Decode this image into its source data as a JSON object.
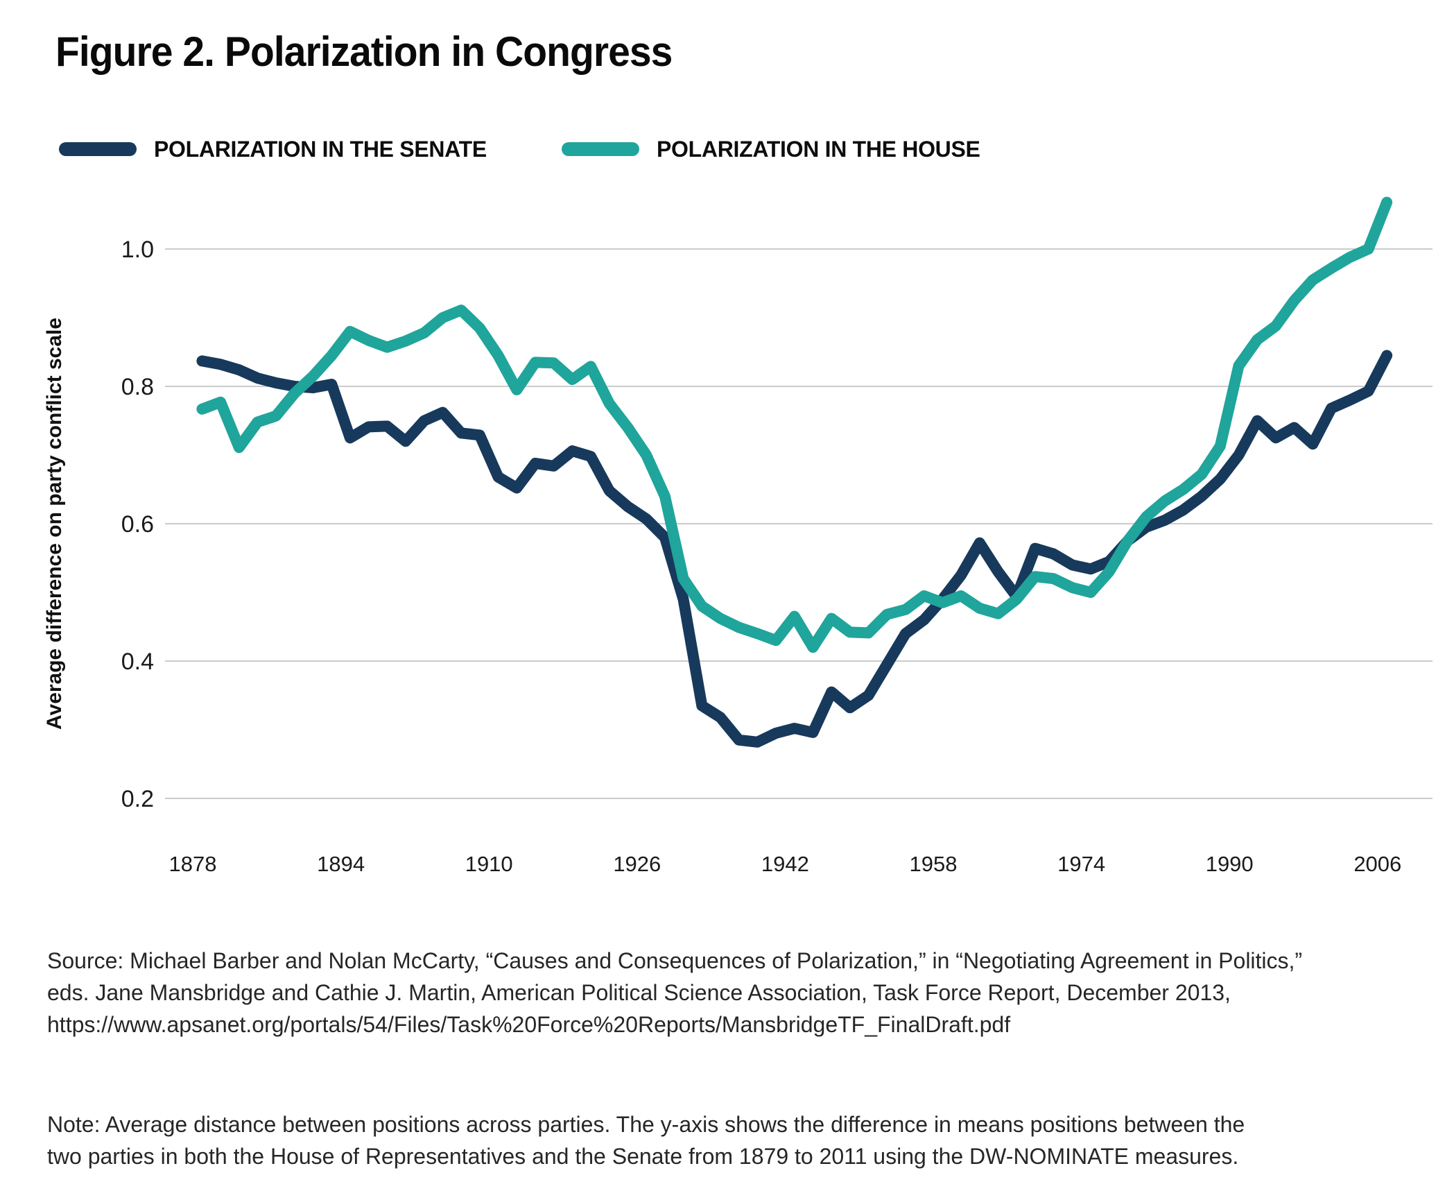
{
  "figure": {
    "title": "Figure 2. Polarization in Congress"
  },
  "legend": {
    "items": [
      {
        "label": "POLARIZATION IN THE SENATE",
        "color": "#17395C"
      },
      {
        "label": "POLARIZATION IN THE HOUSE",
        "color": "#1FA59B"
      }
    ]
  },
  "chart_data": {
    "type": "line",
    "title": "Figure 2. Polarization in Congress",
    "xlabel": "",
    "ylabel": "Average difference on party conflict scale",
    "x_ticks": [
      1878,
      1894,
      1910,
      1926,
      1942,
      1958,
      1974,
      1990,
      2006
    ],
    "y_ticks": [
      1.0,
      0.8,
      0.6,
      0.4,
      0.2
    ],
    "ylim": [
      0.2,
      1.07
    ],
    "grid": "horizontal",
    "legend_position": "top",
    "x": [
      1879,
      1881,
      1883,
      1885,
      1887,
      1889,
      1891,
      1893,
      1895,
      1897,
      1899,
      1901,
      1903,
      1905,
      1907,
      1909,
      1911,
      1913,
      1915,
      1917,
      1919,
      1921,
      1923,
      1925,
      1927,
      1929,
      1931,
      1933,
      1935,
      1937,
      1939,
      1941,
      1943,
      1945,
      1947,
      1949,
      1951,
      1953,
      1955,
      1957,
      1959,
      1961,
      1963,
      1965,
      1967,
      1969,
      1971,
      1973,
      1975,
      1977,
      1979,
      1981,
      1983,
      1985,
      1987,
      1989,
      1991,
      1993,
      1995,
      1997,
      1999,
      2001,
      2003,
      2005,
      2007
    ],
    "series": [
      {
        "name": "Polarization in the Senate",
        "color": "#17395C",
        "values": [
          0.837,
          0.832,
          0.824,
          0.812,
          0.805,
          0.8,
          0.798,
          0.803,
          0.725,
          0.741,
          0.742,
          0.72,
          0.75,
          0.762,
          0.732,
          0.729,
          0.668,
          0.652,
          0.688,
          0.684,
          0.706,
          0.698,
          0.648,
          0.625,
          0.607,
          0.58,
          0.49,
          0.335,
          0.318,
          0.285,
          0.282,
          0.295,
          0.302,
          0.296,
          0.355,
          0.332,
          0.35,
          0.395,
          0.44,
          0.46,
          0.49,
          0.525,
          0.572,
          0.53,
          0.494,
          0.564,
          0.556,
          0.54,
          0.534,
          0.545,
          0.575,
          0.595,
          0.605,
          0.62,
          0.64,
          0.665,
          0.7,
          0.75,
          0.725,
          0.74,
          0.716,
          0.768,
          0.78,
          0.793,
          0.845
        ]
      },
      {
        "name": "Polarization in the House",
        "color": "#1FA59B",
        "values": [
          0.767,
          0.777,
          0.711,
          0.748,
          0.757,
          0.79,
          0.815,
          0.845,
          0.88,
          0.867,
          0.857,
          0.866,
          0.878,
          0.9,
          0.911,
          0.885,
          0.845,
          0.795,
          0.835,
          0.834,
          0.81,
          0.829,
          0.775,
          0.74,
          0.7,
          0.64,
          0.52,
          0.48,
          0.462,
          0.449,
          0.44,
          0.43,
          0.465,
          0.42,
          0.462,
          0.442,
          0.441,
          0.468,
          0.475,
          0.495,
          0.485,
          0.495,
          0.477,
          0.469,
          0.49,
          0.523,
          0.52,
          0.507,
          0.5,
          0.53,
          0.575,
          0.61,
          0.633,
          0.65,
          0.672,
          0.713,
          0.83,
          0.868,
          0.888,
          0.925,
          0.955,
          0.972,
          0.988,
          1.0,
          1.068
        ]
      }
    ]
  },
  "source": {
    "text": "Source: Michael Barber and Nolan McCarty, “Causes and Consequences of Polarization,” in “Negotiating Agreement in Politics,”\neds. Jane Mansbridge and Cathie J. Martin, American Political Science Association, Task Force Report, December 2013,\nhttps://www.apsanet.org/portals/54/Files/Task%20Force%20Reports/MansbridgeTF_FinalDraft.pdf"
  },
  "note": {
    "text": "Note: Average distance between positions across parties. The y-axis shows the difference in means positions between the\ntwo parties in both the House of Representatives and the Senate from 1879 to 2011 using the DW-NOMINATE measures."
  }
}
